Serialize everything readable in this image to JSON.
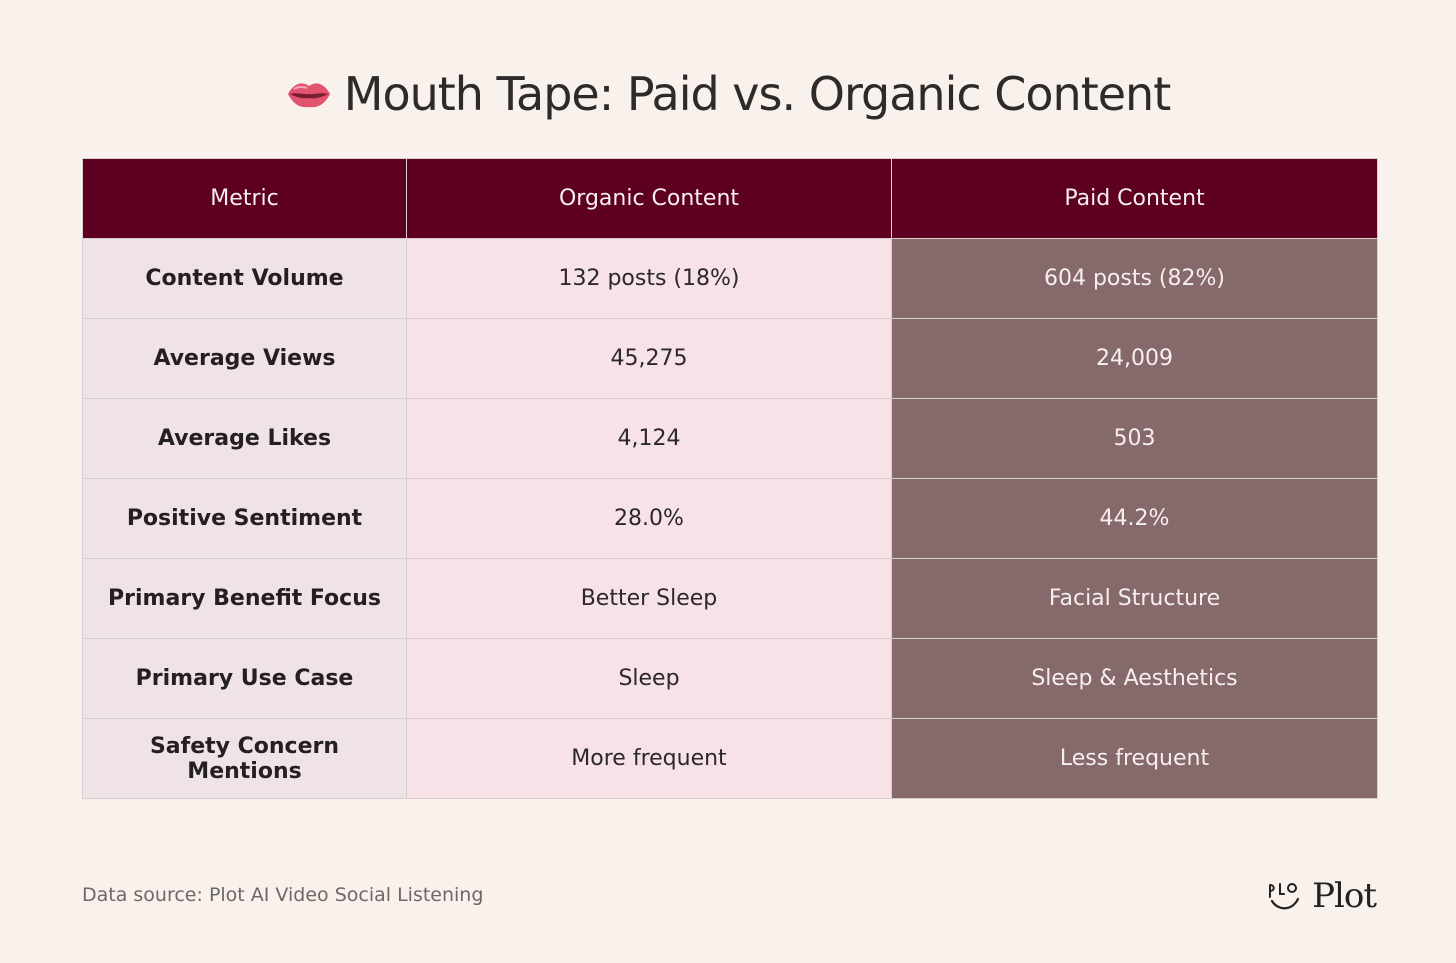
{
  "title": "Mouth Tape: Paid vs. Organic Content",
  "title_icon": "lips-icon",
  "table": {
    "headers": [
      "Metric",
      "Organic Content",
      "Paid Content"
    ],
    "rows": [
      {
        "metric": "Content Volume",
        "organic": "132 posts (18%)",
        "paid": "604 posts (82%)"
      },
      {
        "metric": "Average Views",
        "organic": "45,275",
        "paid": "24,009"
      },
      {
        "metric": "Average Likes",
        "organic": "4,124",
        "paid": "503"
      },
      {
        "metric": "Positive Sentiment",
        "organic": "28.0%",
        "paid": "44.2%"
      },
      {
        "metric": "Primary Benefit Focus",
        "organic": "Better Sleep",
        "paid": "Facial Structure"
      },
      {
        "metric": "Primary Use Case",
        "organic": "Sleep",
        "paid": "Sleep & Aesthetics"
      },
      {
        "metric": "Safety Concern Mentions",
        "organic": "More frequent",
        "paid": "Less frequent"
      }
    ]
  },
  "chart_data": {
    "type": "table",
    "title": "Mouth Tape: Paid vs. Organic Content",
    "columns": [
      "Metric",
      "Organic Content",
      "Paid Content"
    ],
    "rows": [
      [
        "Content Volume",
        "132 posts (18%)",
        "604 posts (82%)"
      ],
      [
        "Average Views",
        "45,275",
        "24,009"
      ],
      [
        "Average Likes",
        "4,124",
        "503"
      ],
      [
        "Positive Sentiment",
        "28.0%",
        "44.2%"
      ],
      [
        "Primary Benefit Focus",
        "Better Sleep",
        "Facial Structure"
      ],
      [
        "Primary Use Case",
        "Sleep",
        "Sleep & Aesthetics"
      ],
      [
        "Safety Concern Mentions",
        "More frequent",
        "Less frequent"
      ]
    ]
  },
  "footer": {
    "source": "Data source: Plot AI Video Social Listening",
    "brand": "Plot",
    "brand_icon": "plot-logo-icon"
  },
  "colors": {
    "background": "#f9f1eb",
    "header": "#5e0021",
    "metric_cell": "#efe3e7",
    "organic_cell": "#f6e2e7",
    "paid_cell": "#86696a"
  }
}
